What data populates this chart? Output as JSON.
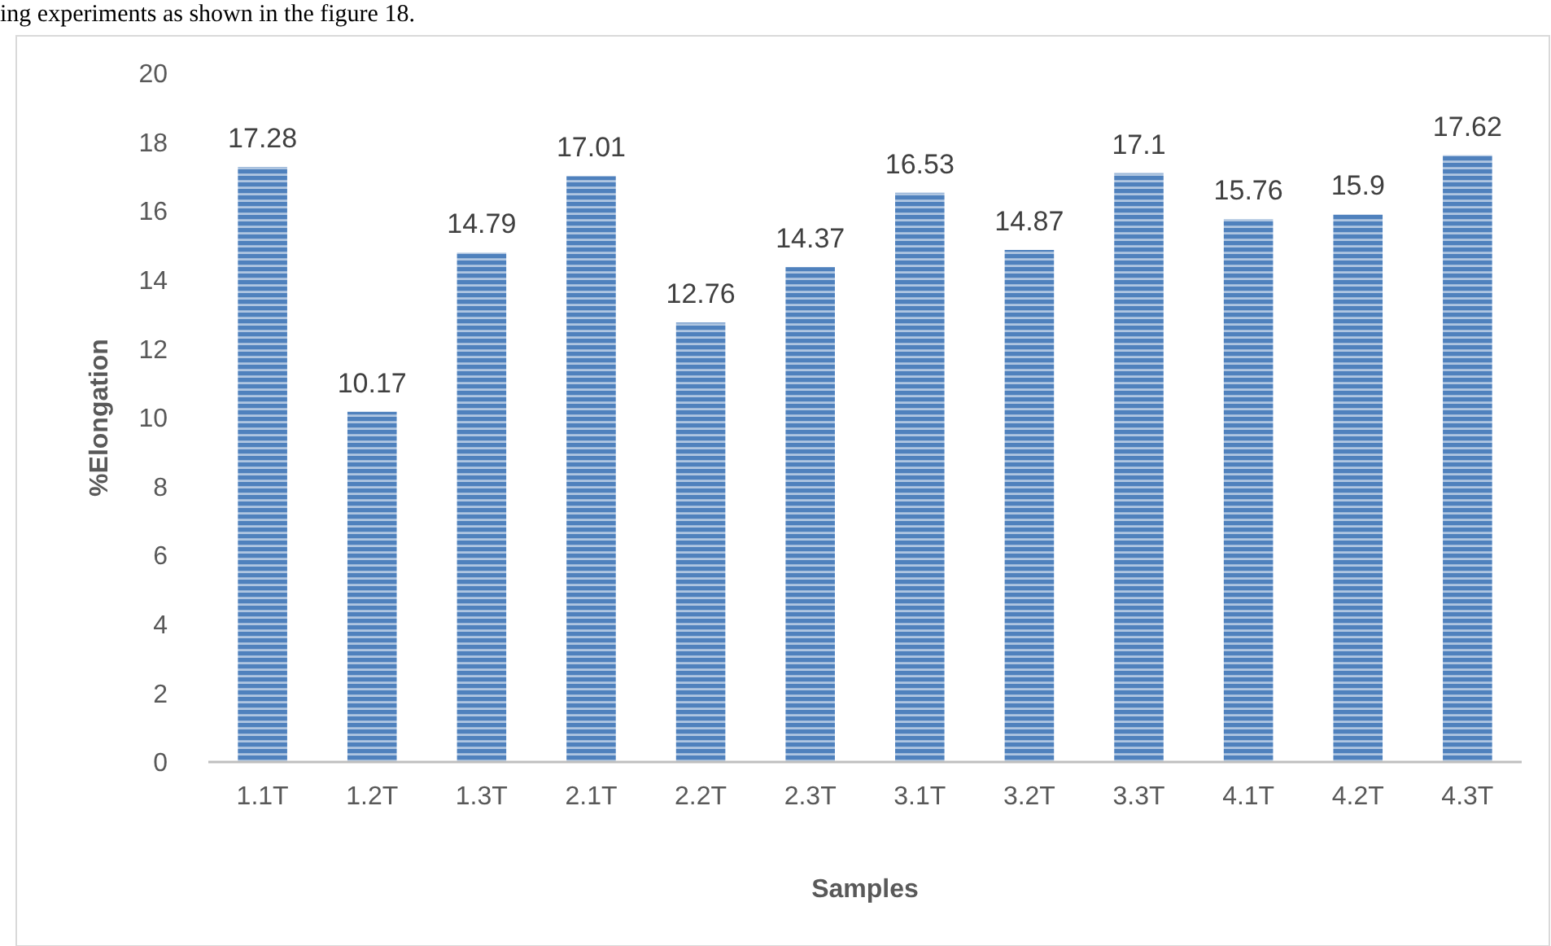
{
  "chart_data": {
    "type": "bar",
    "xlabel": "Samples",
    "ylabel": "%Elongation",
    "annotations": [
      "ing experiments as shown in the figure 18."
    ],
    "categories": [
      "1.1T",
      "1.2T",
      "1.3T",
      "2.1T",
      "2.2T",
      "2.3T",
      "3.1T",
      "3.2T",
      "3.3T",
      "4.1T",
      "4.2T",
      "4.3T"
    ],
    "values": [
      17.28,
      10.17,
      14.79,
      17.01,
      12.76,
      14.37,
      16.53,
      14.87,
      17.1,
      15.76,
      15.9,
      17.62
    ],
    "color": "#4f81bd",
    "ylim": [
      0,
      20
    ],
    "yticks": [
      0,
      2,
      4,
      6,
      8,
      10,
      12,
      14,
      16,
      18,
      20
    ],
    "grid": false,
    "data_labels": true
  }
}
